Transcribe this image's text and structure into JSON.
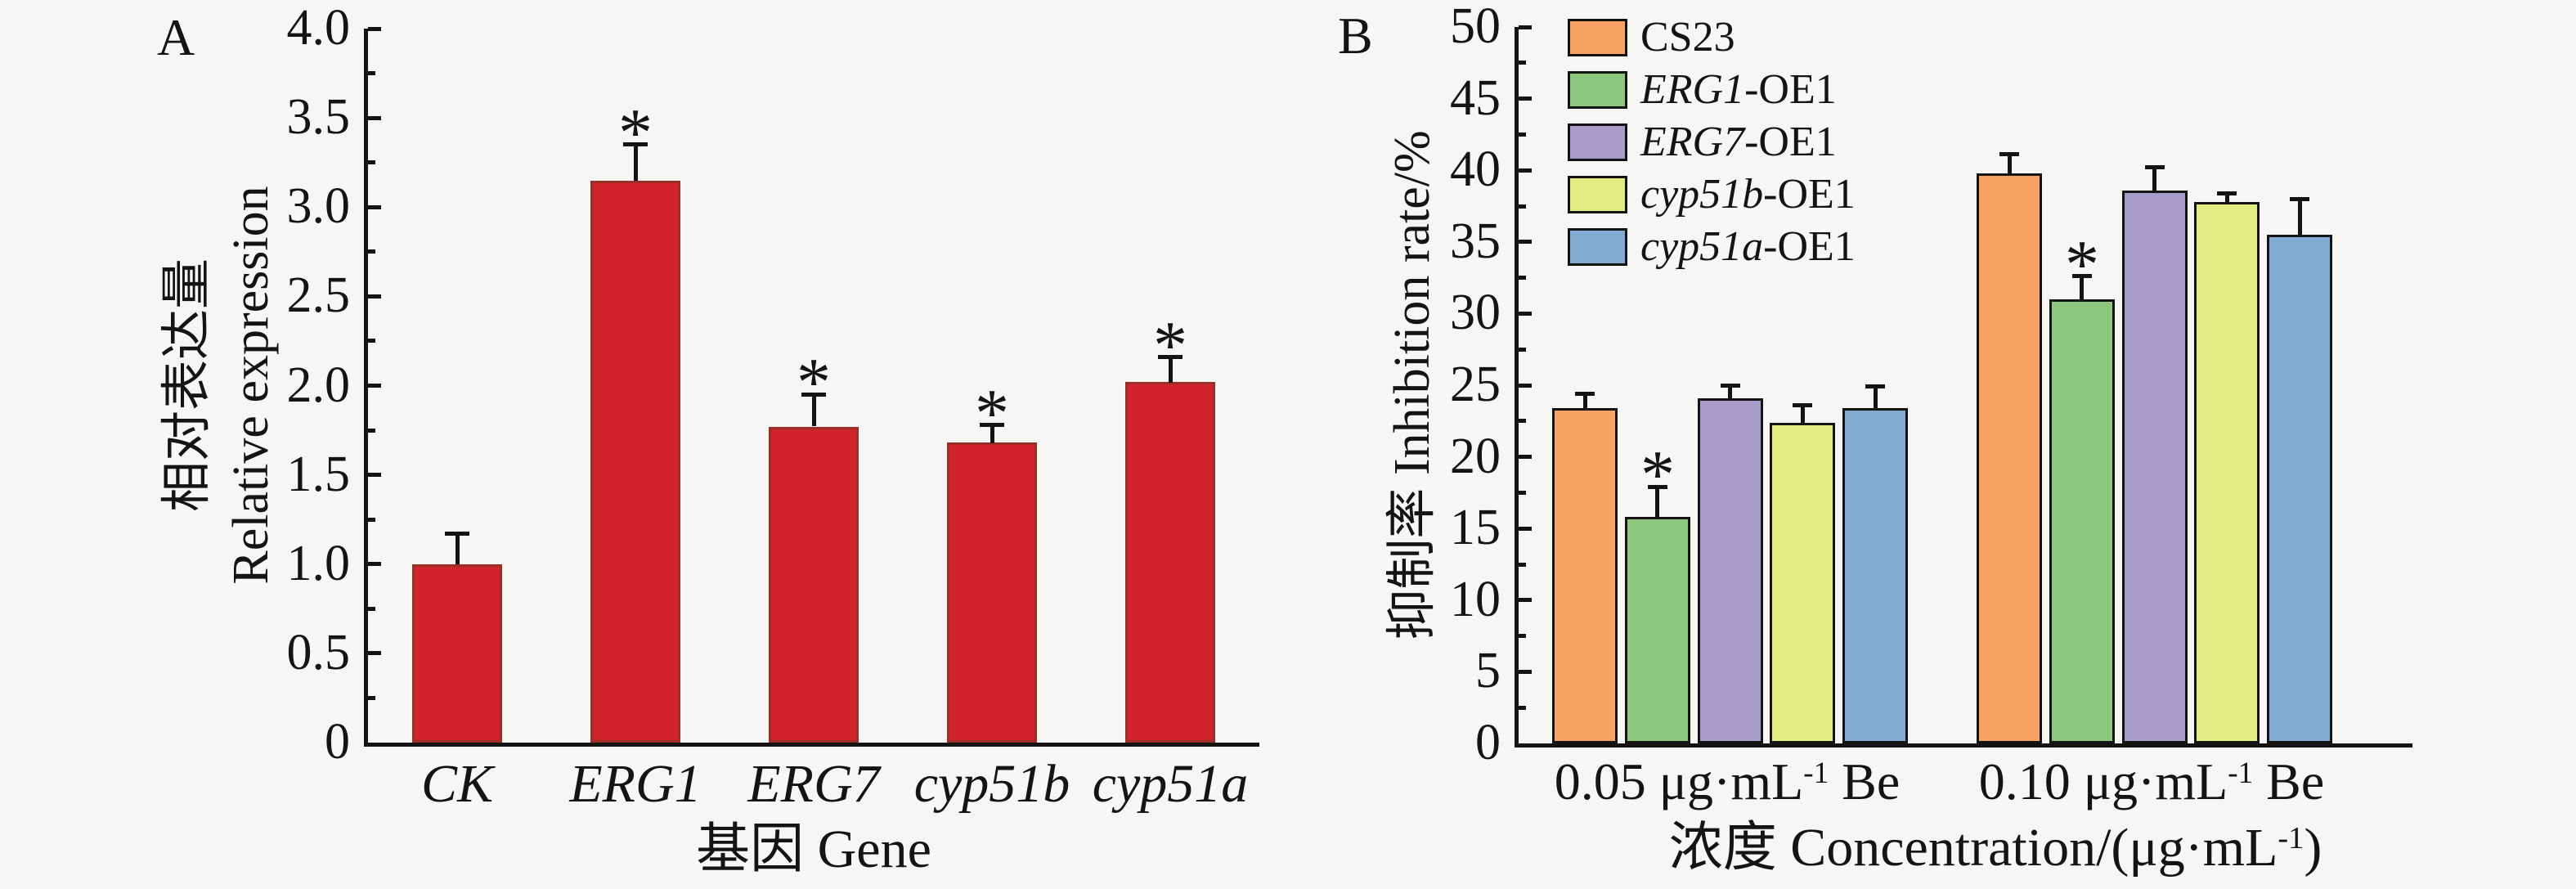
{
  "panels": {
    "a_letter": "A",
    "b_letter": "B"
  },
  "chart_data": [
    {
      "type": "bar",
      "panel": "A",
      "categories": [
        "CK",
        "ERG1",
        "ERG7",
        "cyp51b",
        "cyp51a"
      ],
      "values": [
        1.0,
        3.15,
        1.77,
        1.68,
        2.02
      ],
      "errors": [
        0.17,
        0.2,
        0.18,
        0.1,
        0.14
      ],
      "significance": [
        "",
        "*",
        "*",
        "*",
        "*"
      ],
      "bar_color": "#d1232e",
      "bar_border_color": "#9c2f25",
      "ylabel_zh": "相对表达量",
      "ylabel_en": "Relative expression",
      "xlabel": "基因 Gene",
      "ylim": [
        0,
        4.0
      ],
      "ytick_step": 0.5,
      "yticks": [
        "0",
        "0.5",
        "1.0",
        "1.5",
        "2.0",
        "2.5",
        "3.0",
        "3.5",
        "4.0"
      ],
      "grid": "off"
    },
    {
      "type": "grouped_bar",
      "panel": "B",
      "categories": [
        "0.05 μg·mL⁻¹ Be",
        "0.10 μg·mL⁻¹ Be"
      ],
      "categories_rich": [
        {
          "pre": "0.05 μg·mL",
          "sup": "-1",
          "post": " Be"
        },
        {
          "pre": "0.10 μg·mL",
          "sup": "-1",
          "post": " Be"
        }
      ],
      "series": [
        {
          "name": "CS23",
          "legend_italic": "",
          "legend_text": "CS23",
          "color": "#f8a264",
          "values": [
            23.4,
            39.8
          ],
          "errors": [
            1.0,
            1.3
          ],
          "significance": [
            "",
            ""
          ]
        },
        {
          "name": "ERG1-OE1",
          "legend_italic": "ERG1",
          "legend_text": "-OE1",
          "color": "#8ec87f",
          "values": [
            15.8,
            31.0
          ],
          "errors": [
            2.1,
            1.6
          ],
          "significance": [
            "*",
            "*"
          ]
        },
        {
          "name": "ERG7-OE1",
          "legend_italic": "ERG7",
          "legend_text": "-OE1",
          "color": "#a89ccb",
          "values": [
            24.1,
            38.6
          ],
          "errors": [
            0.9,
            1.6
          ],
          "significance": [
            "",
            ""
          ]
        },
        {
          "name": "cyp51b-OE1",
          "legend_italic": "cyp51b",
          "legend_text": "-OE1",
          "color": "#e2ee83",
          "values": [
            22.4,
            37.8
          ],
          "errors": [
            1.2,
            0.6
          ],
          "significance": [
            "",
            ""
          ]
        },
        {
          "name": "cyp51a-OE1",
          "legend_italic": "cyp51a",
          "legend_text": "-OE1",
          "color": "#83aad2",
          "values": [
            23.4,
            35.5
          ],
          "errors": [
            1.5,
            2.5
          ],
          "significance": [
            "",
            ""
          ]
        }
      ],
      "ylabel": "抑制率 Inhibition rate/%",
      "xlabel": "浓度 Concentration/(μg·mL⁻¹)",
      "xlabel_rich": {
        "pre": "浓度 Concentration/(μg·mL",
        "sup": "-1",
        "post": ")"
      },
      "ylim": [
        0,
        50
      ],
      "ytick_step": 5,
      "yticks": [
        "0",
        "5",
        "10",
        "15",
        "20",
        "25",
        "30",
        "35",
        "40",
        "45",
        "50"
      ],
      "legend_position": "top-left",
      "grid": "off"
    }
  ]
}
